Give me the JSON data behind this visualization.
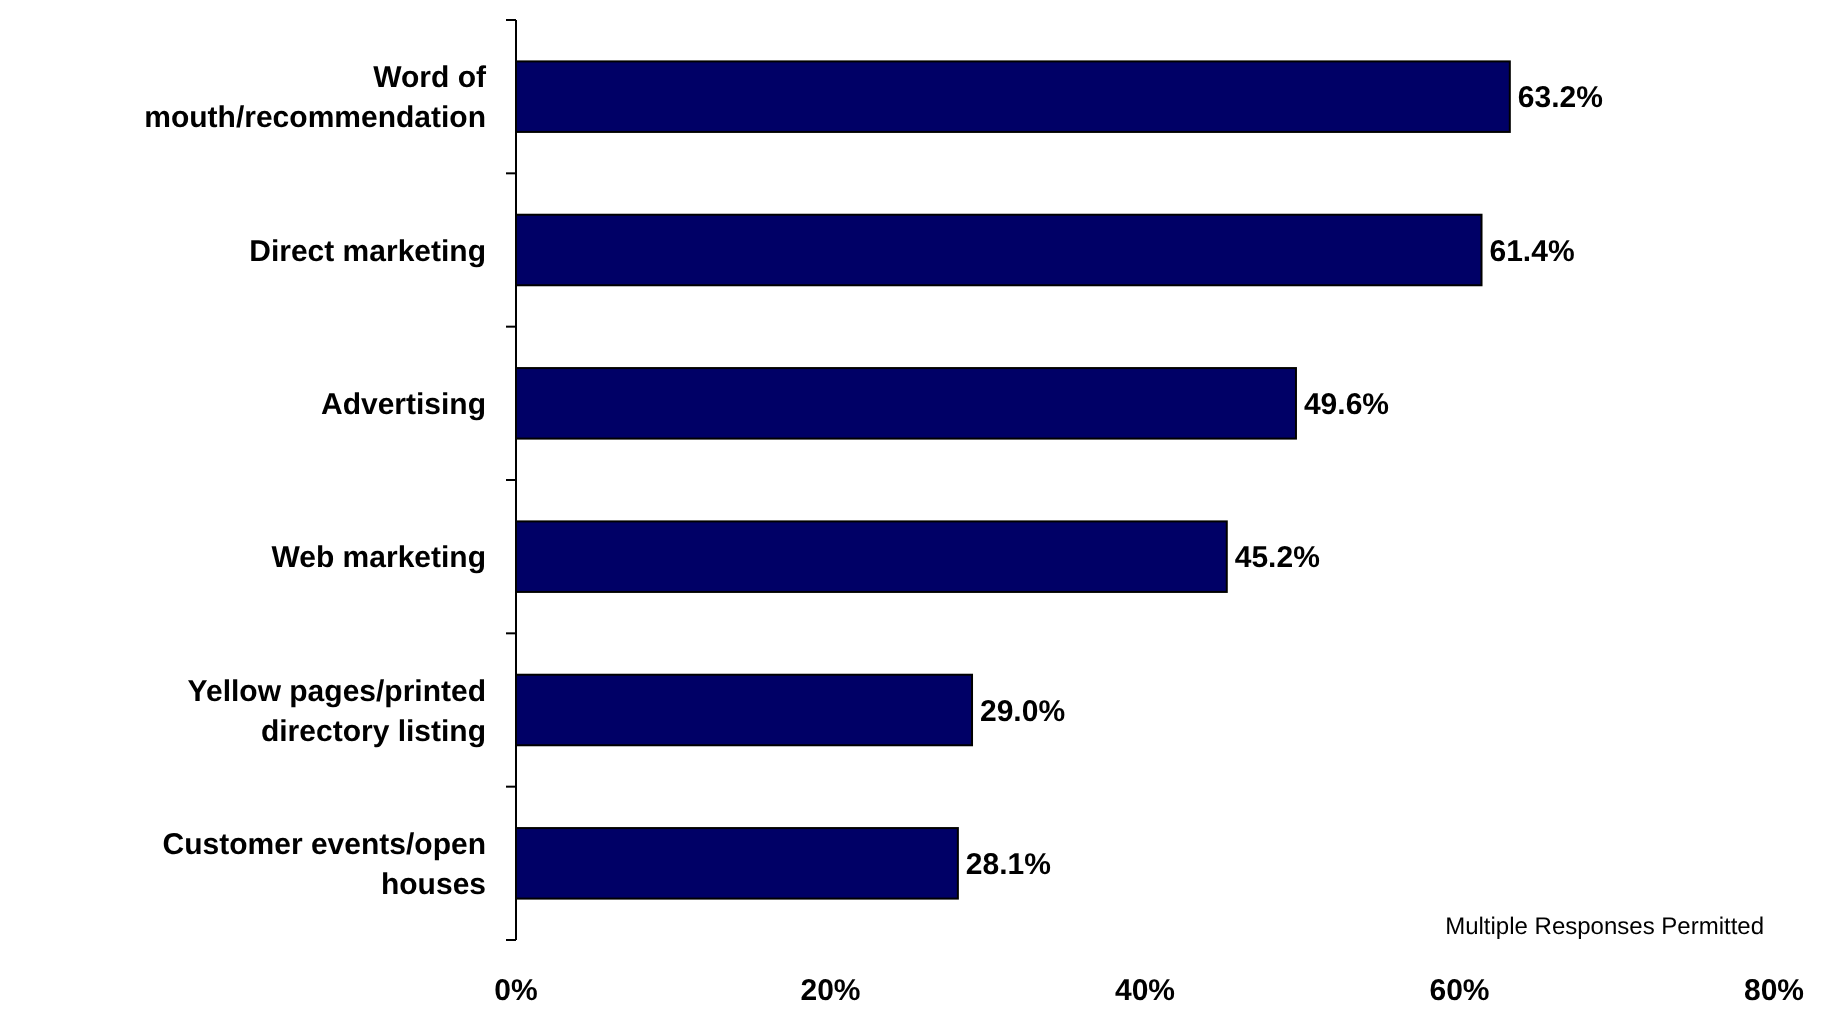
{
  "chart_data": {
    "type": "bar",
    "orientation": "horizontal",
    "categories": [
      "Word of mouth/recommendation",
      "Direct marketing",
      "Advertising",
      "Web marketing",
      "Yellow pages/printed directory listing",
      "Customer events/open houses"
    ],
    "values": [
      63.2,
      61.4,
      49.6,
      45.2,
      29.0,
      28.1
    ],
    "value_labels": [
      "63.2%",
      "61.4%",
      "49.6%",
      "45.2%",
      "29.0%",
      "28.1%"
    ],
    "color": "#000066",
    "xlim": [
      0,
      80
    ],
    "xticks": [
      {
        "value": 0,
        "label": "0%"
      },
      {
        "value": 20,
        "label": "20%"
      },
      {
        "value": 40,
        "label": "40%"
      },
      {
        "value": 60,
        "label": "60%"
      },
      {
        "value": 80,
        "label": "80%"
      }
    ],
    "grid": false,
    "annotations": [
      "Multiple Responses Permitted"
    ]
  }
}
